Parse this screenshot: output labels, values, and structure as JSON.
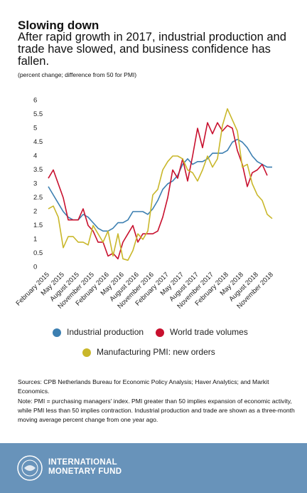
{
  "chart_data": {
    "type": "line",
    "title": "Slowing down",
    "subtitle": "After rapid growth in 2017, industrial production and trade have slowed, and business confidence has fallen.",
    "y_label": "(percent change; difference from 50 for PMI)",
    "categories": [
      "February 2015",
      null,
      null,
      "May 2015",
      null,
      null,
      "August 2015",
      null,
      null,
      "November 2015",
      null,
      null,
      "February 2016",
      null,
      null,
      "May 2016",
      null,
      null,
      "August 2016",
      null,
      null,
      "November 2016",
      null,
      null,
      "February 2017",
      null,
      null,
      "May 2017",
      null,
      null,
      "August 2017",
      null,
      null,
      "November 2017",
      null,
      null,
      "February 2018",
      null,
      null,
      "May 2018",
      null,
      null,
      "August 2018",
      null,
      null,
      "November 2018"
    ],
    "series": [
      {
        "name": "Industrial production",
        "color": "#3c7fb1",
        "values": [
          2.9,
          2.6,
          2.3,
          2.0,
          1.8,
          1.7,
          1.7,
          1.9,
          1.8,
          1.6,
          1.4,
          1.3,
          1.3,
          1.4,
          1.6,
          1.6,
          1.7,
          2.0,
          2.0,
          2.0,
          1.9,
          2.1,
          2.4,
          2.8,
          3.0,
          3.1,
          3.3,
          3.7,
          3.9,
          3.7,
          3.8,
          3.8,
          3.9,
          4.1,
          4.1,
          4.1,
          4.2,
          4.5,
          4.6,
          4.5,
          4.3,
          4.0,
          3.8,
          3.7,
          3.6,
          3.6
        ]
      },
      {
        "name": "World trade volumes",
        "color": "#c8102e",
        "values": [
          3.2,
          3.5,
          3.0,
          2.5,
          1.7,
          1.7,
          1.7,
          2.1,
          1.5,
          1.3,
          0.9,
          0.9,
          0.4,
          0.5,
          0.3,
          0.9,
          1.2,
          1.5,
          0.9,
          1.2,
          1.2,
          1.2,
          1.3,
          1.8,
          2.5,
          3.5,
          3.2,
          3.9,
          3.1,
          4.0,
          5.0,
          4.3,
          5.2,
          4.8,
          5.2,
          4.9,
          5.1,
          5.0,
          4.2,
          3.7,
          2.9,
          3.4,
          3.5,
          3.7,
          3.3,
          null
        ]
      },
      {
        "name": "Manufacturing PMI: new orders",
        "color": "#c9b72a",
        "values": [
          2.1,
          2.2,
          1.8,
          0.7,
          1.1,
          1.1,
          0.9,
          0.9,
          0.8,
          1.5,
          1.2,
          0.9,
          1.3,
          0.4,
          1.2,
          0.3,
          0.25,
          0.6,
          1.2,
          1.0,
          1.3,
          2.6,
          2.8,
          3.5,
          3.8,
          4.0,
          4.0,
          3.9,
          3.5,
          3.4,
          3.1,
          3.5,
          4.0,
          3.6,
          3.9,
          5.1,
          5.7,
          5.3,
          4.9,
          3.6,
          3.7,
          3.0,
          2.6,
          2.4,
          1.9,
          1.75
        ]
      }
    ],
    "ylim": [
      0,
      6
    ],
    "yticks": [
      0,
      0.5,
      1,
      1.5,
      2,
      2.5,
      3,
      3.5,
      4,
      4.5,
      5,
      5.5,
      6
    ],
    "grid": false,
    "sources": "Sources: CPB Netherlands Bureau for Economic Policy Analysis; Haver Analytics; and Markit Economics.",
    "note": "Note: PMI = purchasing managers' index. PMI greater than 50 implies expansion of economic activity, while PMI less than 50 implies contraction. Industrial production and trade are shown as a three-month moving average percent change from one year ago."
  },
  "footer": {
    "org_line1": "INTERNATIONAL",
    "org_line2": "MONETARY FUND"
  }
}
